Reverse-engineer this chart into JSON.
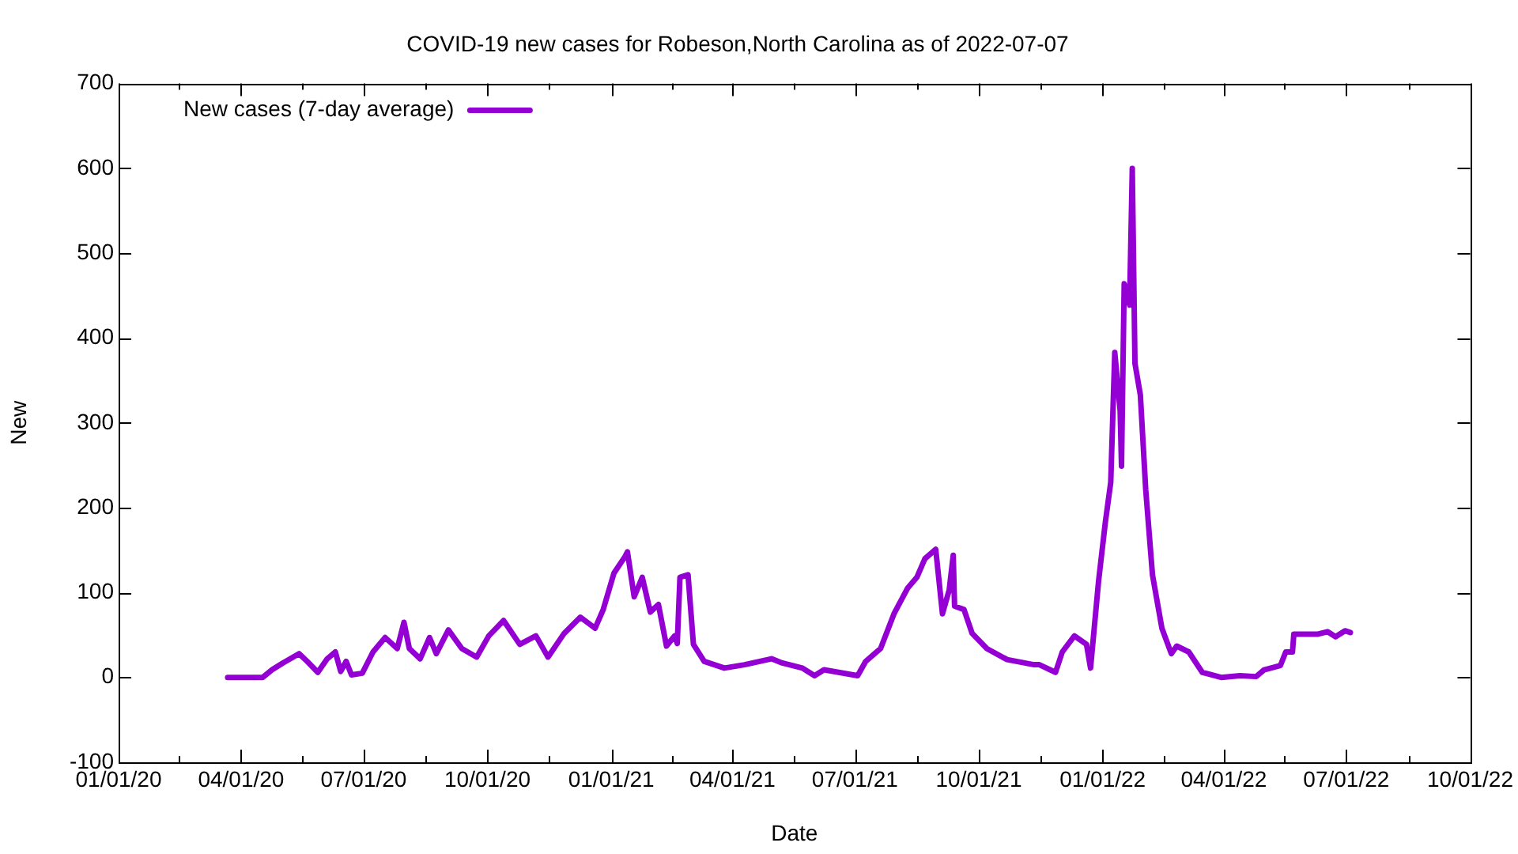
{
  "chart_data": {
    "type": "line",
    "title": "COVID-19 new cases for Robeson,North Carolina as of 2022-07-07",
    "xlabel": "Date",
    "ylabel": "New",
    "x": [
      "2020-03-22",
      "2020-04-17",
      "2020-04-24",
      "2020-05-02",
      "2020-05-14",
      "2020-05-20",
      "2020-05-28",
      "2020-06-04",
      "2020-06-10",
      "2020-06-14",
      "2020-06-18",
      "2020-06-22",
      "2020-06-30",
      "2020-07-08",
      "2020-07-17",
      "2020-07-26",
      "2020-07-31",
      "2020-08-04",
      "2020-08-12",
      "2020-08-19",
      "2020-08-24",
      "2020-09-02",
      "2020-09-12",
      "2020-09-23",
      "2020-10-02",
      "2020-10-13",
      "2020-10-25",
      "2020-11-06",
      "2020-11-15",
      "2020-11-27",
      "2020-12-09",
      "2020-12-20",
      "2020-12-26",
      "2021-01-03",
      "2021-01-11",
      "2021-01-13",
      "2021-01-18",
      "2021-01-24",
      "2021-01-30",
      "2021-02-05",
      "2021-02-11",
      "2021-02-17",
      "2021-02-19",
      "2021-02-21",
      "2021-02-27",
      "2021-03-03",
      "2021-03-11",
      "2021-03-26",
      "2021-04-10",
      "2021-04-30",
      "2021-05-08",
      "2021-05-23",
      "2021-06-01",
      "2021-06-08",
      "2021-07-03",
      "2021-07-09",
      "2021-07-20",
      "2021-07-30",
      "2021-08-09",
      "2021-08-16",
      "2021-08-22",
      "2021-08-30",
      "2021-09-04",
      "2021-09-09",
      "2021-09-12",
      "2021-09-13",
      "2021-09-20",
      "2021-09-26",
      "2021-10-07",
      "2021-10-22",
      "2021-11-11",
      "2021-11-15",
      "2021-11-27",
      "2021-12-02",
      "2021-12-11",
      "2021-12-20",
      "2021-12-23",
      "2021-12-29",
      "2022-01-03",
      "2022-01-07",
      "2022-01-10",
      "2022-01-14",
      "2022-01-15",
      "2022-01-17",
      "2022-01-21",
      "2022-01-23",
      "2022-01-25",
      "2022-01-29",
      "2022-02-02",
      "2022-02-07",
      "2022-02-14",
      "2022-02-21",
      "2022-02-25",
      "2022-03-06",
      "2022-03-16",
      "2022-03-30",
      "2022-04-13",
      "2022-04-25",
      "2022-05-01",
      "2022-05-13",
      "2022-05-17",
      "2022-05-22",
      "2022-05-23",
      "2022-06-10",
      "2022-06-17",
      "2022-06-23",
      "2022-06-30",
      "2022-07-04"
    ],
    "series": [
      {
        "name": "New cases (7-day average)",
        "color": "#9400d3",
        "values": [
          0,
          0,
          9,
          17,
          28,
          19,
          6,
          22,
          30,
          7,
          19,
          3,
          5,
          30,
          47,
          34,
          65,
          34,
          22,
          47,
          28,
          56,
          34,
          24,
          49,
          67,
          39,
          49,
          24,
          52,
          71,
          58,
          80,
          123,
          142,
          148,
          95,
          118,
          77,
          86,
          37,
          49,
          40,
          118,
          121,
          39,
          19,
          11,
          15,
          22,
          17,
          11,
          2,
          9,
          2,
          19,
          34,
          75,
          105,
          118,
          140,
          151,
          75,
          103,
          144,
          84,
          80,
          52,
          34,
          21,
          15,
          15,
          6,
          30,
          49,
          39,
          11,
          114,
          183,
          230,
          383,
          314,
          249,
          464,
          439,
          600,
          370,
          333,
          221,
          121,
          58,
          28,
          37,
          30,
          6,
          0,
          2,
          1,
          9,
          14,
          30,
          30,
          51,
          51,
          54,
          48,
          55,
          53
        ]
      }
    ],
    "xlim": [
      "2020-01-01",
      "2022-10-01"
    ],
    "xticks": [
      {
        "value": "2020-01-01",
        "label": "01/01/20"
      },
      {
        "value": "2020-02-15",
        "label": null
      },
      {
        "value": "2020-04-01",
        "label": "04/01/20"
      },
      {
        "value": "2020-05-16",
        "label": null
      },
      {
        "value": "2020-07-01",
        "label": "07/01/20"
      },
      {
        "value": "2020-08-16",
        "label": null
      },
      {
        "value": "2020-10-01",
        "label": "10/01/20"
      },
      {
        "value": "2020-11-16",
        "label": null
      },
      {
        "value": "2021-01-01",
        "label": "01/01/21"
      },
      {
        "value": "2021-02-15",
        "label": null
      },
      {
        "value": "2021-04-01",
        "label": "04/01/21"
      },
      {
        "value": "2021-05-16",
        "label": null
      },
      {
        "value": "2021-07-01",
        "label": "07/01/21"
      },
      {
        "value": "2021-08-16",
        "label": null
      },
      {
        "value": "2021-10-01",
        "label": "10/01/21"
      },
      {
        "value": "2021-11-16",
        "label": null
      },
      {
        "value": "2022-01-01",
        "label": "01/01/22"
      },
      {
        "value": "2022-02-15",
        "label": null
      },
      {
        "value": "2022-04-01",
        "label": "04/01/22"
      },
      {
        "value": "2022-05-16",
        "label": null
      },
      {
        "value": "2022-07-01",
        "label": "07/01/22"
      },
      {
        "value": "2022-08-16",
        "label": null
      },
      {
        "value": "2022-10-01",
        "label": "10/01/22"
      }
    ],
    "ylim": [
      -100,
      700
    ],
    "yticks": [
      -100,
      0,
      100,
      200,
      300,
      400,
      500,
      600,
      700
    ],
    "grid": false,
    "legend": "top left",
    "marker": "none",
    "line_style": "solid"
  }
}
